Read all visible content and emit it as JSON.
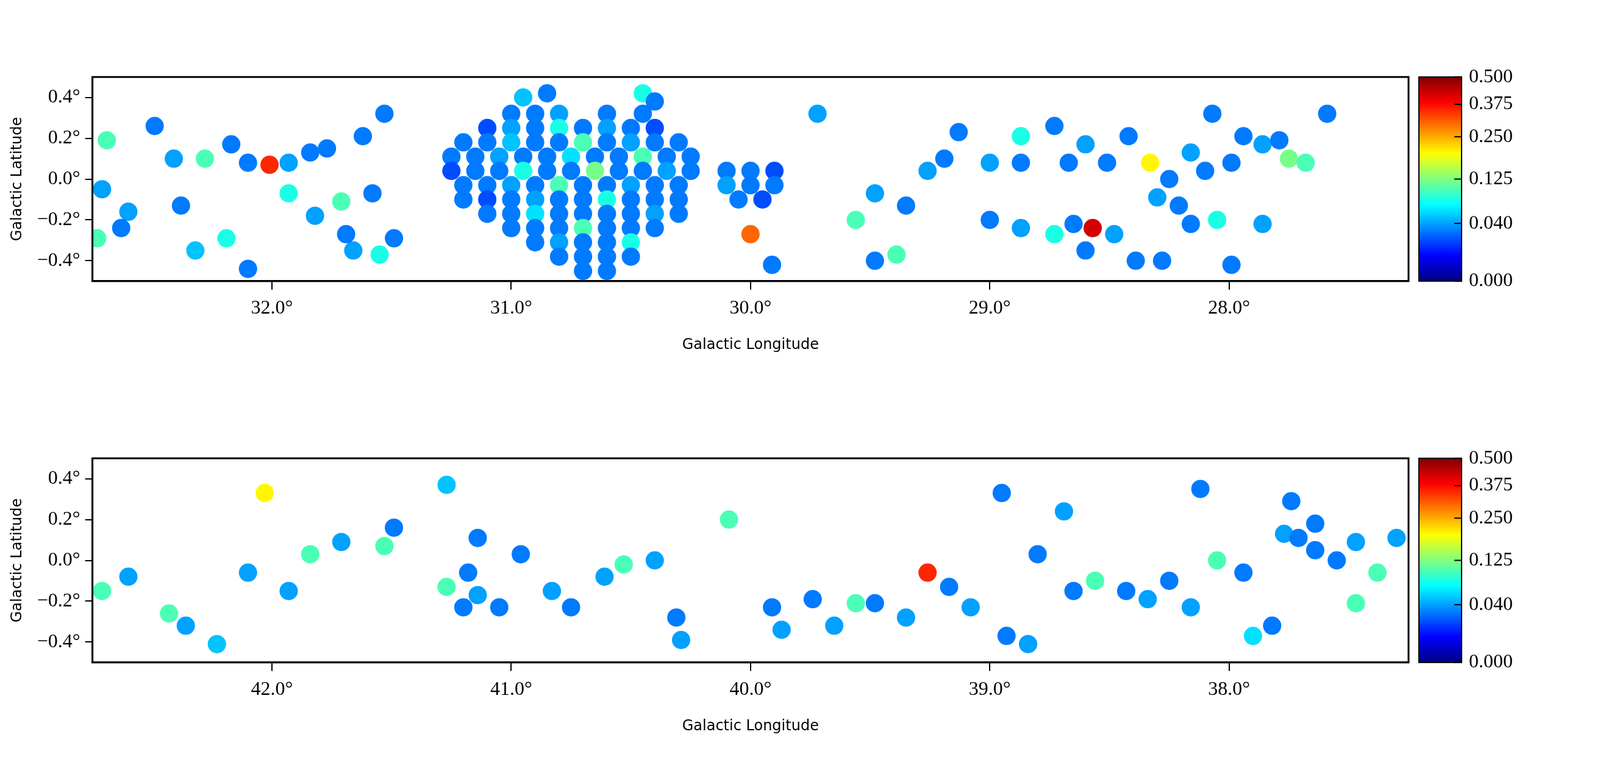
{
  "chart_data": [
    {
      "type": "heatmap",
      "color": "jet",
      "grid": false,
      "x_label": "Galactic Longitude",
      "y_label": "Galactic Latitude",
      "xlim": [
        32.75,
        27.25
      ],
      "ylim": [
        -0.5,
        0.5
      ],
      "xticks": [
        {
          "value": 32,
          "label": "32.0°"
        },
        {
          "value": 31,
          "label": "31.0°"
        },
        {
          "value": 30,
          "label": "30.0°"
        },
        {
          "value": 29,
          "label": "29.0°"
        },
        {
          "value": 28,
          "label": "28.0°"
        }
      ],
      "yticks": [
        {
          "value": -0.4,
          "label": "−0.4°"
        },
        {
          "value": -0.2,
          "label": "−0.2°"
        },
        {
          "value": 0,
          "label": "0.0°"
        },
        {
          "value": 0.2,
          "label": "0.2°"
        },
        {
          "value": 0.4,
          "label": "0.4°"
        }
      ],
      "colorbar_range": [
        0,
        0.5
      ],
      "colorbar_ticks": [
        {
          "value": 0,
          "label": "0.000"
        },
        {
          "value": 0.04,
          "label": "0.040"
        },
        {
          "value": 0.125,
          "label": "0.125"
        },
        {
          "value": 0.25,
          "label": "0.250"
        },
        {
          "value": 0.375,
          "label": "0.375"
        },
        {
          "value": 0.5,
          "label": "0.500"
        }
      ],
      "cells": [
        [
          32.71,
          -0.05,
          0.04
        ],
        [
          32.69,
          0.19,
          0.1
        ],
        [
          32.6,
          -0.16,
          0.04
        ],
        [
          32.63,
          -0.24,
          0.03
        ],
        [
          32.73,
          -0.29,
          0.1
        ],
        [
          32.49,
          0.26,
          0.03
        ],
        [
          32.41,
          0.1,
          0.04
        ],
        [
          32.28,
          0.1,
          0.1
        ],
        [
          32.17,
          0.17,
          0.03
        ],
        [
          32.1,
          0.08,
          0.03
        ],
        [
          31.93,
          0.08,
          0.04
        ],
        [
          31.84,
          0.13,
          0.03
        ],
        [
          31.77,
          0.15,
          0.03
        ],
        [
          32.38,
          -0.13,
          0.03
        ],
        [
          32.32,
          -0.35,
          0.05
        ],
        [
          32.19,
          -0.29,
          0.08
        ],
        [
          32.1,
          -0.44,
          0.03
        ],
        [
          31.93,
          -0.07,
          0.08
        ],
        [
          31.82,
          -0.18,
          0.04
        ],
        [
          31.71,
          -0.11,
          0.1
        ],
        [
          31.58,
          -0.07,
          0.03
        ],
        [
          31.66,
          -0.35,
          0.04
        ],
        [
          31.55,
          -0.37,
          0.08
        ],
        [
          31.49,
          -0.29,
          0.03
        ],
        [
          31.69,
          -0.27,
          0.03
        ],
        [
          31.62,
          0.21,
          0.03
        ],
        [
          31.53,
          0.32,
          0.03
        ],
        [
          30.95,
          0.4,
          0.05
        ],
        [
          30.85,
          0.42,
          0.03
        ],
        [
          30.45,
          0.42,
          0.08
        ],
        [
          30.4,
          0.38,
          0.03
        ],
        [
          31.0,
          0.32,
          0.03
        ],
        [
          30.9,
          0.32,
          0.03
        ],
        [
          30.8,
          0.32,
          0.04
        ],
        [
          30.6,
          0.32,
          0.03
        ],
        [
          30.45,
          0.32,
          0.03
        ],
        [
          31.1,
          0.25,
          0.02
        ],
        [
          31.0,
          0.25,
          0.04
        ],
        [
          30.9,
          0.25,
          0.03
        ],
        [
          30.8,
          0.25,
          0.08
        ],
        [
          30.7,
          0.25,
          0.03
        ],
        [
          30.6,
          0.25,
          0.04
        ],
        [
          30.5,
          0.25,
          0.03
        ],
        [
          30.4,
          0.25,
          0.02
        ],
        [
          31.2,
          0.18,
          0.03
        ],
        [
          31.1,
          0.18,
          0.03
        ],
        [
          31.0,
          0.18,
          0.05
        ],
        [
          30.9,
          0.18,
          0.03
        ],
        [
          30.8,
          0.18,
          0.03
        ],
        [
          30.7,
          0.18,
          0.1
        ],
        [
          30.6,
          0.18,
          0.03
        ],
        [
          30.5,
          0.18,
          0.04
        ],
        [
          30.4,
          0.18,
          0.03
        ],
        [
          30.3,
          0.18,
          0.03
        ],
        [
          31.25,
          0.11,
          0.03
        ],
        [
          31.15,
          0.11,
          0.03
        ],
        [
          31.05,
          0.11,
          0.04
        ],
        [
          30.95,
          0.11,
          0.03
        ],
        [
          30.85,
          0.11,
          0.03
        ],
        [
          30.75,
          0.11,
          0.06
        ],
        [
          30.65,
          0.11,
          0.03
        ],
        [
          30.55,
          0.11,
          0.03
        ],
        [
          30.45,
          0.11,
          0.1
        ],
        [
          30.35,
          0.11,
          0.03
        ],
        [
          30.25,
          0.11,
          0.03
        ],
        [
          31.25,
          0.04,
          0.02
        ],
        [
          31.15,
          0.04,
          0.03
        ],
        [
          31.05,
          0.04,
          0.03
        ],
        [
          30.95,
          0.04,
          0.08
        ],
        [
          30.85,
          0.04,
          0.03
        ],
        [
          30.75,
          0.04,
          0.03
        ],
        [
          30.65,
          0.04,
          0.12
        ],
        [
          30.55,
          0.04,
          0.03
        ],
        [
          30.45,
          0.04,
          0.03
        ],
        [
          30.35,
          0.04,
          0.04
        ],
        [
          30.25,
          0.04,
          0.03
        ],
        [
          30.1,
          0.04,
          0.03
        ],
        [
          30.0,
          0.04,
          0.03
        ],
        [
          29.9,
          0.04,
          0.02
        ],
        [
          31.2,
          -0.03,
          0.03
        ],
        [
          31.1,
          -0.03,
          0.03
        ],
        [
          31.0,
          -0.03,
          0.04
        ],
        [
          30.9,
          -0.03,
          0.03
        ],
        [
          30.8,
          -0.03,
          0.1
        ],
        [
          30.7,
          -0.03,
          0.03
        ],
        [
          30.6,
          -0.03,
          0.03
        ],
        [
          30.5,
          -0.03,
          0.04
        ],
        [
          30.4,
          -0.03,
          0.03
        ],
        [
          30.3,
          -0.03,
          0.03
        ],
        [
          30.1,
          -0.03,
          0.04
        ],
        [
          30.0,
          -0.03,
          0.03
        ],
        [
          29.9,
          -0.03,
          0.03
        ],
        [
          31.2,
          -0.1,
          0.03
        ],
        [
          31.1,
          -0.1,
          0.02
        ],
        [
          31.0,
          -0.1,
          0.03
        ],
        [
          30.9,
          -0.1,
          0.04
        ],
        [
          30.8,
          -0.1,
          0.03
        ],
        [
          30.7,
          -0.1,
          0.03
        ],
        [
          30.6,
          -0.1,
          0.08
        ],
        [
          30.5,
          -0.1,
          0.03
        ],
        [
          30.4,
          -0.1,
          0.03
        ],
        [
          30.3,
          -0.1,
          0.03
        ],
        [
          30.05,
          -0.1,
          0.03
        ],
        [
          29.95,
          -0.1,
          0.02
        ],
        [
          31.1,
          -0.17,
          0.03
        ],
        [
          31.0,
          -0.17,
          0.03
        ],
        [
          30.9,
          -0.17,
          0.06
        ],
        [
          30.8,
          -0.17,
          0.03
        ],
        [
          30.7,
          -0.17,
          0.03
        ],
        [
          30.6,
          -0.17,
          0.03
        ],
        [
          30.5,
          -0.17,
          0.03
        ],
        [
          30.4,
          -0.17,
          0.04
        ],
        [
          30.3,
          -0.17,
          0.03
        ],
        [
          31.0,
          -0.24,
          0.03
        ],
        [
          30.9,
          -0.24,
          0.03
        ],
        [
          30.8,
          -0.24,
          0.03
        ],
        [
          30.7,
          -0.24,
          0.1
        ],
        [
          30.6,
          -0.24,
          0.03
        ],
        [
          30.5,
          -0.24,
          0.03
        ],
        [
          30.4,
          -0.24,
          0.03
        ],
        [
          30.9,
          -0.31,
          0.03
        ],
        [
          30.8,
          -0.31,
          0.04
        ],
        [
          30.7,
          -0.31,
          0.03
        ],
        [
          30.6,
          -0.31,
          0.03
        ],
        [
          30.5,
          -0.31,
          0.08
        ],
        [
          30.8,
          -0.38,
          0.03
        ],
        [
          30.7,
          -0.38,
          0.03
        ],
        [
          30.6,
          -0.38,
          0.03
        ],
        [
          30.5,
          -0.38,
          0.03
        ],
        [
          30.7,
          -0.45,
          0.03
        ],
        [
          30.6,
          -0.45,
          0.03
        ],
        [
          29.91,
          -0.42,
          0.03
        ],
        [
          29.72,
          0.32,
          0.04
        ],
        [
          29.56,
          -0.2,
          0.1
        ],
        [
          29.48,
          -0.4,
          0.03
        ],
        [
          29.48,
          -0.07,
          0.04
        ],
        [
          29.35,
          -0.13,
          0.03
        ],
        [
          29.26,
          0.04,
          0.04
        ],
        [
          29.19,
          0.1,
          0.03
        ],
        [
          29.39,
          -0.37,
          0.1
        ],
        [
          29.13,
          0.23,
          0.03
        ],
        [
          29.0,
          0.08,
          0.04
        ],
        [
          28.87,
          0.08,
          0.03
        ],
        [
          28.87,
          0.21,
          0.08
        ],
        [
          28.73,
          0.26,
          0.03
        ],
        [
          28.67,
          0.08,
          0.03
        ],
        [
          28.6,
          0.17,
          0.04
        ],
        [
          28.51,
          0.08,
          0.03
        ],
        [
          28.42,
          0.21,
          0.03
        ],
        [
          28.33,
          0.08,
          0.2
        ],
        [
          28.25,
          0.0,
          0.03
        ],
        [
          28.16,
          0.13,
          0.04
        ],
        [
          28.1,
          0.04,
          0.03
        ],
        [
          27.99,
          0.08,
          0.03
        ],
        [
          27.94,
          0.21,
          0.03
        ],
        [
          27.86,
          0.17,
          0.04
        ],
        [
          27.79,
          0.19,
          0.03
        ],
        [
          27.75,
          0.1,
          0.12
        ],
        [
          29.0,
          -0.2,
          0.03
        ],
        [
          28.87,
          -0.24,
          0.04
        ],
        [
          28.73,
          -0.27,
          0.08
        ],
        [
          28.65,
          -0.22,
          0.03
        ],
        [
          28.6,
          -0.35,
          0.03
        ],
        [
          28.48,
          -0.27,
          0.04
        ],
        [
          28.39,
          -0.4,
          0.03
        ],
        [
          28.28,
          -0.4,
          0.03
        ],
        [
          28.3,
          -0.09,
          0.04
        ],
        [
          28.21,
          -0.13,
          0.03
        ],
        [
          28.16,
          -0.22,
          0.03
        ],
        [
          28.05,
          -0.2,
          0.08
        ],
        [
          27.99,
          -0.42,
          0.03
        ],
        [
          27.86,
          -0.22,
          0.04
        ],
        [
          28.07,
          0.32,
          0.03
        ],
        [
          27.59,
          0.32,
          0.03
        ],
        [
          27.68,
          0.08,
          0.1
        ],
        [
          32.01,
          0.07,
          0.35
        ],
        [
          30.0,
          -0.27,
          0.3
        ],
        [
          28.57,
          -0.24,
          0.42
        ]
      ]
    },
    {
      "type": "heatmap",
      "color": "jet",
      "grid": false,
      "x_label": "Galactic Longitude",
      "y_label": "Galactic Latitude",
      "xlim": [
        42.75,
        37.25
      ],
      "ylim": [
        -0.5,
        0.5
      ],
      "xticks": [
        {
          "value": 42,
          "label": "42.0°"
        },
        {
          "value": 41,
          "label": "41.0°"
        },
        {
          "value": 40,
          "label": "40.0°"
        },
        {
          "value": 39,
          "label": "39.0°"
        },
        {
          "value": 38,
          "label": "38.0°"
        }
      ],
      "yticks": [
        {
          "value": -0.4,
          "label": "−0.4°"
        },
        {
          "value": -0.2,
          "label": "−0.2°"
        },
        {
          "value": 0,
          "label": "0.0°"
        },
        {
          "value": 0.2,
          "label": "0.2°"
        },
        {
          "value": 0.4,
          "label": "0.4°"
        }
      ],
      "colorbar_range": [
        0,
        0.5
      ],
      "colorbar_ticks": [
        {
          "value": 0,
          "label": "0.000"
        },
        {
          "value": 0.04,
          "label": "0.040"
        },
        {
          "value": 0.125,
          "label": "0.125"
        },
        {
          "value": 0.25,
          "label": "0.250"
        },
        {
          "value": 0.375,
          "label": "0.375"
        },
        {
          "value": 0.5,
          "label": "0.500"
        }
      ],
      "cells": [
        [
          42.71,
          -0.15,
          0.1
        ],
        [
          42.6,
          -0.08,
          0.04
        ],
        [
          42.43,
          -0.26,
          0.1
        ],
        [
          42.36,
          -0.32,
          0.04
        ],
        [
          42.23,
          -0.41,
          0.05
        ],
        [
          42.1,
          -0.06,
          0.04
        ],
        [
          42.03,
          0.33,
          0.2
        ],
        [
          41.93,
          -0.15,
          0.04
        ],
        [
          41.84,
          0.03,
          0.1
        ],
        [
          41.71,
          0.09,
          0.04
        ],
        [
          41.53,
          0.07,
          0.1
        ],
        [
          41.49,
          0.16,
          0.03
        ],
        [
          41.27,
          0.37,
          0.05
        ],
        [
          41.14,
          0.11,
          0.03
        ],
        [
          41.27,
          -0.13,
          0.1
        ],
        [
          41.18,
          -0.06,
          0.03
        ],
        [
          41.14,
          -0.17,
          0.04
        ],
        [
          41.05,
          -0.23,
          0.03
        ],
        [
          41.2,
          -0.23,
          0.03
        ],
        [
          40.96,
          0.03,
          0.03
        ],
        [
          40.83,
          -0.15,
          0.04
        ],
        [
          40.75,
          -0.23,
          0.03
        ],
        [
          40.61,
          -0.08,
          0.04
        ],
        [
          40.53,
          -0.02,
          0.1
        ],
        [
          40.4,
          0.0,
          0.04
        ],
        [
          40.31,
          -0.28,
          0.03
        ],
        [
          40.29,
          -0.39,
          0.04
        ],
        [
          40.09,
          0.2,
          0.1
        ],
        [
          39.91,
          -0.23,
          0.03
        ],
        [
          39.87,
          -0.34,
          0.04
        ],
        [
          39.74,
          -0.19,
          0.03
        ],
        [
          39.65,
          -0.32,
          0.04
        ],
        [
          39.56,
          -0.21,
          0.1
        ],
        [
          39.48,
          -0.21,
          0.03
        ],
        [
          39.35,
          -0.28,
          0.04
        ],
        [
          39.17,
          -0.13,
          0.03
        ],
        [
          39.08,
          -0.23,
          0.04
        ],
        [
          38.93,
          -0.37,
          0.03
        ],
        [
          38.84,
          -0.41,
          0.04
        ],
        [
          38.95,
          0.33,
          0.03
        ],
        [
          38.8,
          0.03,
          0.03
        ],
        [
          38.69,
          0.24,
          0.04
        ],
        [
          38.65,
          -0.15,
          0.03
        ],
        [
          38.56,
          -0.1,
          0.1
        ],
        [
          38.43,
          -0.15,
          0.03
        ],
        [
          38.34,
          -0.19,
          0.04
        ],
        [
          38.25,
          -0.1,
          0.03
        ],
        [
          38.16,
          -0.23,
          0.04
        ],
        [
          38.12,
          0.35,
          0.03
        ],
        [
          38.05,
          0.0,
          0.1
        ],
        [
          37.94,
          -0.06,
          0.03
        ],
        [
          37.9,
          -0.37,
          0.06
        ],
        [
          37.82,
          -0.32,
          0.03
        ],
        [
          37.77,
          0.13,
          0.04
        ],
        [
          37.71,
          0.11,
          0.03
        ],
        [
          37.64,
          0.18,
          0.03
        ],
        [
          37.64,
          0.05,
          0.03
        ],
        [
          37.55,
          0.0,
          0.03
        ],
        [
          37.47,
          0.09,
          0.04
        ],
        [
          37.74,
          0.29,
          0.03
        ],
        [
          37.38,
          -0.06,
          0.1
        ],
        [
          37.47,
          -0.21,
          0.1
        ],
        [
          37.3,
          0.11,
          0.04
        ],
        [
          39.26,
          -0.06,
          0.35
        ]
      ]
    }
  ]
}
